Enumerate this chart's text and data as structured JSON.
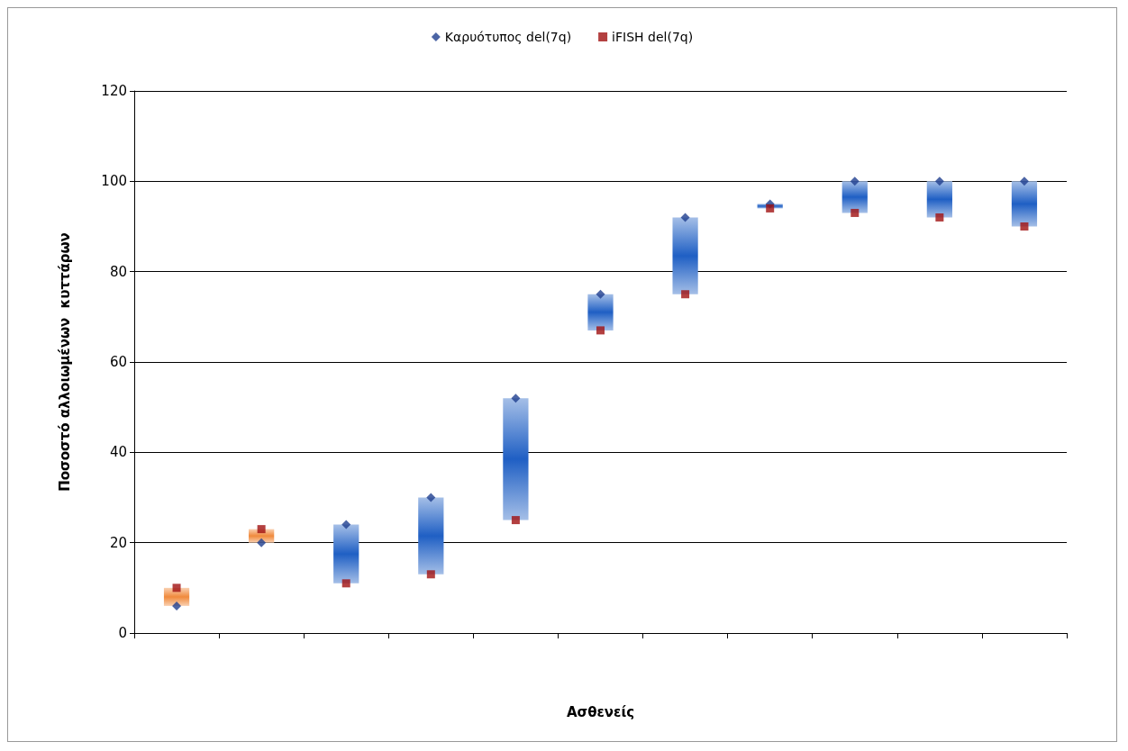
{
  "chart_data": {
    "type": "scatter",
    "xlabel": "Ασθενείς",
    "ylabel": "Ποσοστό αλλοιωμένων  κυττάρων",
    "categories": [
      null,
      null,
      null,
      null,
      null,
      null,
      null,
      null,
      null,
      null,
      null
    ],
    "series": [
      {
        "type": "bar",
        "base": [
          6,
          20,
          11,
          13,
          25,
          67,
          75,
          94,
          93,
          92,
          90
        ],
        "values": [
          4,
          3,
          13,
          17,
          27,
          8,
          17,
          1,
          7,
          8,
          10
        ],
        "colors": [
          "#f08a3c",
          "#f08a3c",
          "#1f5fc4",
          "#1f5fc4",
          "#1f5fc4",
          "#1f5fc4",
          "#1f5fc4",
          "#1f5fc4",
          "#1f5fc4",
          "#1f5fc4",
          "#1f5fc4"
        ]
      },
      {
        "name": "Καρυότυπος del(7q)",
        "marker": "diamond",
        "color": "#1f3f8f",
        "values": [
          6,
          20,
          24,
          30,
          52,
          75,
          92,
          95,
          100,
          100,
          100
        ]
      },
      {
        "name": "iFISH del(7q)",
        "marker": "square",
        "color": "#a01010",
        "values": [
          10,
          23,
          11,
          13,
          25,
          67,
          75,
          94,
          93,
          92,
          90
        ]
      }
    ],
    "ylim": [
      0,
      120
    ],
    "yticks": [
      0,
      20,
      40,
      60,
      80,
      100,
      120
    ],
    "grid": "y",
    "legend": "top"
  }
}
